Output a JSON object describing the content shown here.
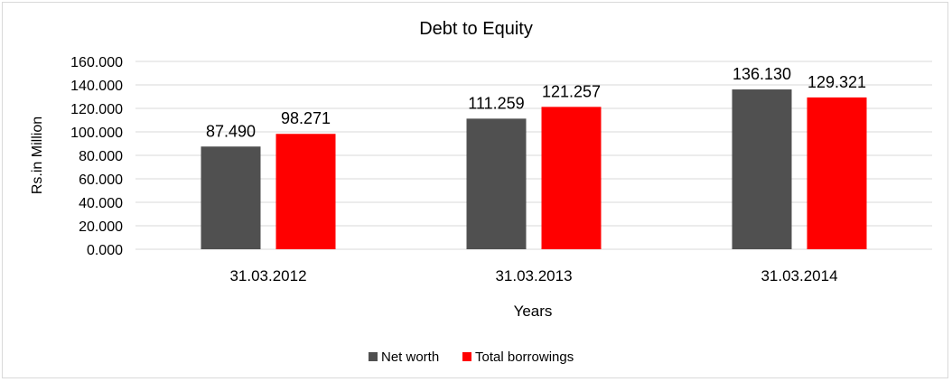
{
  "chart_data": {
    "type": "bar",
    "title": "Debt to Equity",
    "xlabel": "Years",
    "ylabel": "Rs.in Million",
    "categories": [
      "31.03.2012",
      "31.03.2013",
      "31.03.2014"
    ],
    "series": [
      {
        "name": "Net worth",
        "color": "#505050",
        "values": [
          87.49,
          111.259,
          136.13
        ],
        "labels": [
          "87.490",
          "111.259",
          "136.130"
        ]
      },
      {
        "name": "Total borrowings",
        "color": "#ff0000",
        "values": [
          98.271,
          121.257,
          129.321
        ],
        "labels": [
          "98.271",
          "121.257",
          "129.321"
        ]
      }
    ],
    "ylim": [
      0,
      160
    ],
    "yticks": [
      "0.000",
      "20.000",
      "40.000",
      "60.000",
      "80.000",
      "100.000",
      "120.000",
      "140.000",
      "160.000"
    ],
    "grid": true,
    "legend_position": "bottom"
  }
}
